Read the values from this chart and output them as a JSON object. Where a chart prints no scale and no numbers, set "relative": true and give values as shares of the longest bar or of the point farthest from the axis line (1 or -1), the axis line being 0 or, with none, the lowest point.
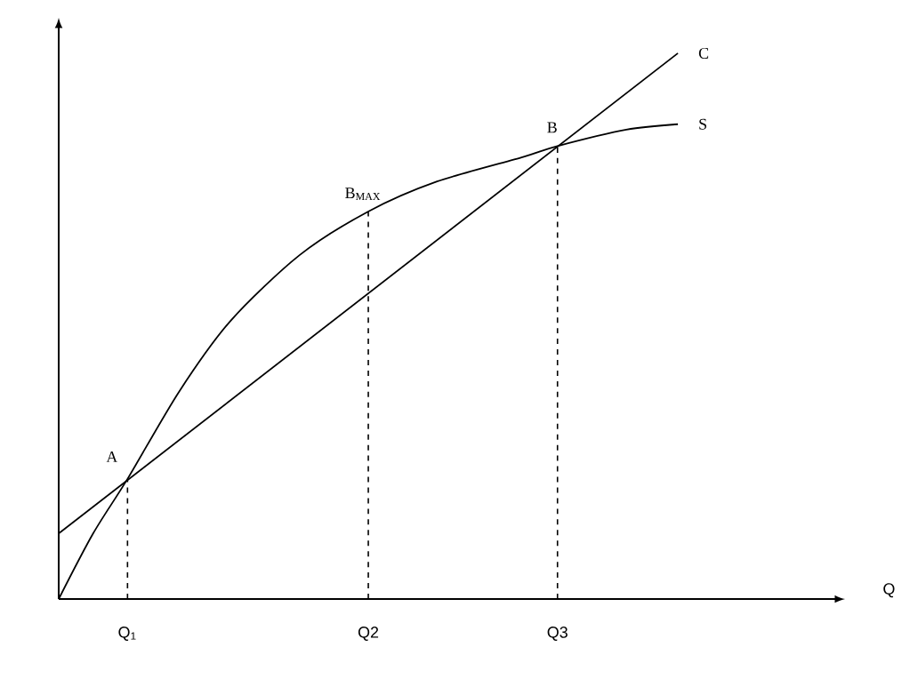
{
  "chart_data": {
    "type": "line",
    "relative": true,
    "categories": [
      null,
      null,
      null,
      null,
      "Q$_{1}$",
      null,
      null,
      null,
      null,
      null,
      null,
      null,
      null,
      null,
      null,
      null,
      null,
      null,
      "Q2",
      null,
      null,
      null,
      null,
      null,
      null,
      null,
      null,
      null,
      null,
      "Q3",
      null,
      null,
      null,
      null,
      null,
      null,
      null
    ],
    "series": [
      {
        "name": "C",
        "color": "#000000",
        "values": [
          0.12,
          null,
          null,
          null,
          null,
          null,
          null,
          null,
          null,
          null,
          null,
          null,
          null,
          null,
          null,
          null,
          null,
          null,
          null,
          null,
          null,
          null,
          null,
          null,
          null,
          null,
          null,
          null,
          null,
          null,
          null,
          null,
          null,
          null,
          null,
          null,
          1
        ]
      },
      {
        "name": "S",
        "color": "#000000",
        "values": [
          0,
          null,
          0.12,
          null,
          0.22,
          null,
          null,
          0.38,
          null,
          null,
          0.51,
          null,
          null,
          null,
          0.63,
          null,
          null,
          null,
          0.71,
          null,
          null,
          null,
          0.765,
          null,
          null,
          null,
          null,
          0.81,
          null,
          0.83,
          null,
          null,
          null,
          0.86,
          null,
          null,
          0.87
        ]
      }
    ],
    "annotations": [
      {
        "text": "A",
        "x": "Q$_{1}$",
        "y": 0.22
      },
      {
        "text": "B$_{MAX}$",
        "x": "Q2",
        "y": 0.71
      },
      {
        "text": "B",
        "x": "Q3",
        "y": 0.83
      },
      "Q"
    ],
    "ref_lines": [
      {
        "axis": "x",
        "value": "Q$_{1}$",
        "line_style": "dashed"
      },
      {
        "axis": "x",
        "value": "Q2",
        "line_style": "dashed"
      },
      {
        "axis": "x",
        "value": "Q3",
        "line_style": "dashed"
      }
    ]
  }
}
